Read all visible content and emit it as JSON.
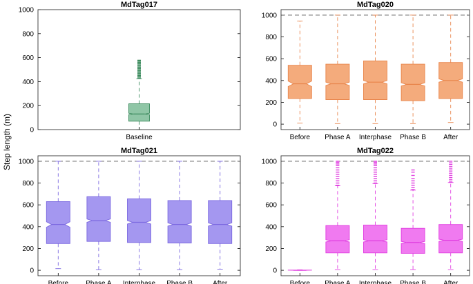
{
  "figure": {
    "ylabel": "Step length (m)"
  },
  "chart_data": [
    {
      "type": "boxplot",
      "title": "MdTag017",
      "color": "#3a8a5c",
      "fill": "#8fc6a6",
      "ylim": [
        0,
        1000
      ],
      "yticks": [
        0,
        200,
        400,
        600,
        800,
        1000
      ],
      "categories": [
        "Baseline"
      ],
      "ref_line": null,
      "boxes": [
        {
          "label": "Baseline",
          "min": 0,
          "q1": 70,
          "median": 130,
          "q3": 215,
          "max": 425,
          "notch": [
            125,
            137
          ],
          "outliers": [
            430,
            440,
            450,
            460,
            470,
            480,
            490,
            500,
            510,
            520,
            530,
            540,
            550,
            560,
            570,
            578
          ]
        }
      ]
    },
    {
      "type": "boxplot",
      "title": "MdTag020",
      "color": "#e8844a",
      "fill": "#f4ab7c",
      "ylim": [
        -50,
        1050
      ],
      "yticks": [
        0,
        200,
        400,
        600,
        800,
        1000
      ],
      "categories": [
        "Before",
        "Phase A",
        "Interphase",
        "Phase B",
        "After"
      ],
      "ref_line": 1000,
      "boxes": [
        {
          "label": "Before",
          "min": 10,
          "q1": 235,
          "median": 370,
          "q3": 540,
          "max": 945,
          "notch": [
            345,
            395
          ],
          "outliers": []
        },
        {
          "label": "Phase A",
          "min": 5,
          "q1": 225,
          "median": 370,
          "q3": 550,
          "max": 1000,
          "notch": [
            355,
            385
          ],
          "outliers": []
        },
        {
          "label": "Interphase",
          "min": 5,
          "q1": 225,
          "median": 385,
          "q3": 580,
          "max": 1000,
          "notch": [
            370,
            400
          ],
          "outliers": []
        },
        {
          "label": "Phase B",
          "min": 5,
          "q1": 215,
          "median": 365,
          "q3": 550,
          "max": 1000,
          "notch": [
            350,
            380
          ],
          "outliers": []
        },
        {
          "label": "After",
          "min": 15,
          "q1": 235,
          "median": 400,
          "q3": 565,
          "max": 1000,
          "notch": [
            385,
            415
          ],
          "outliers": []
        }
      ]
    },
    {
      "type": "boxplot",
      "title": "MdTag021",
      "color": "#7b68e0",
      "fill": "#a497f0",
      "ylim": [
        -50,
        1050
      ],
      "yticks": [
        0,
        200,
        400,
        600,
        800,
        1000
      ],
      "categories": [
        "Before",
        "Phase A",
        "Interphase",
        "Phase B",
        "After"
      ],
      "ref_line": 1000,
      "boxes": [
        {
          "label": "Before",
          "min": 15,
          "q1": 245,
          "median": 420,
          "q3": 630,
          "max": 1000,
          "notch": [
            395,
            445
          ],
          "outliers": []
        },
        {
          "label": "Phase A",
          "min": 5,
          "q1": 265,
          "median": 455,
          "q3": 675,
          "max": 1000,
          "notch": [
            440,
            470
          ],
          "outliers": []
        },
        {
          "label": "Interphase",
          "min": 5,
          "q1": 255,
          "median": 440,
          "q3": 655,
          "max": 1000,
          "notch": [
            425,
            455
          ],
          "outliers": []
        },
        {
          "label": "Phase B",
          "min": 5,
          "q1": 250,
          "median": 420,
          "q3": 640,
          "max": 1000,
          "notch": [
            405,
            435
          ],
          "outliers": []
        },
        {
          "label": "After",
          "min": 10,
          "q1": 245,
          "median": 420,
          "q3": 640,
          "max": 1000,
          "notch": [
            405,
            435
          ],
          "outliers": []
        }
      ]
    },
    {
      "type": "boxplot",
      "title": "MdTag022",
      "color": "#e03ce0",
      "fill": "#f07af0",
      "ylim": [
        -50,
        1050
      ],
      "yticks": [
        0,
        200,
        400,
        600,
        800,
        1000
      ],
      "categories": [
        "Before",
        "Phase A",
        "Interphase",
        "Phase B",
        "After"
      ],
      "ref_line": 1000,
      "boxes": [
        {
          "label": "Before",
          "min": 0,
          "q1": 0,
          "median": 0,
          "q3": 2,
          "max": 4,
          "notch": [
            0,
            1
          ],
          "outliers": []
        },
        {
          "label": "Phase A",
          "min": 5,
          "q1": 160,
          "median": 270,
          "q3": 410,
          "max": 775,
          "notch": [
            260,
            280
          ],
          "outliers": [
            780,
            800,
            820,
            840,
            860,
            880,
            900,
            920,
            940,
            960,
            975,
            990,
            1000
          ]
        },
        {
          "label": "Interphase",
          "min": 5,
          "q1": 160,
          "median": 270,
          "q3": 415,
          "max": 795,
          "notch": [
            260,
            280
          ],
          "outliers": [
            800,
            820,
            840,
            860,
            880,
            900,
            920,
            940,
            960,
            975,
            990,
            1000
          ]
        },
        {
          "label": "Phase B",
          "min": 5,
          "q1": 155,
          "median": 255,
          "q3": 385,
          "max": 735,
          "notch": [
            245,
            265
          ],
          "outliers": [
            740,
            760,
            780,
            800,
            820,
            840,
            870,
            900,
            920
          ]
        },
        {
          "label": "After",
          "min": 5,
          "q1": 160,
          "median": 275,
          "q3": 420,
          "max": 805,
          "notch": [
            265,
            285
          ],
          "outliers": [
            810,
            830,
            850,
            870,
            890,
            910,
            930,
            950,
            970,
            985,
            1000
          ]
        }
      ]
    }
  ]
}
